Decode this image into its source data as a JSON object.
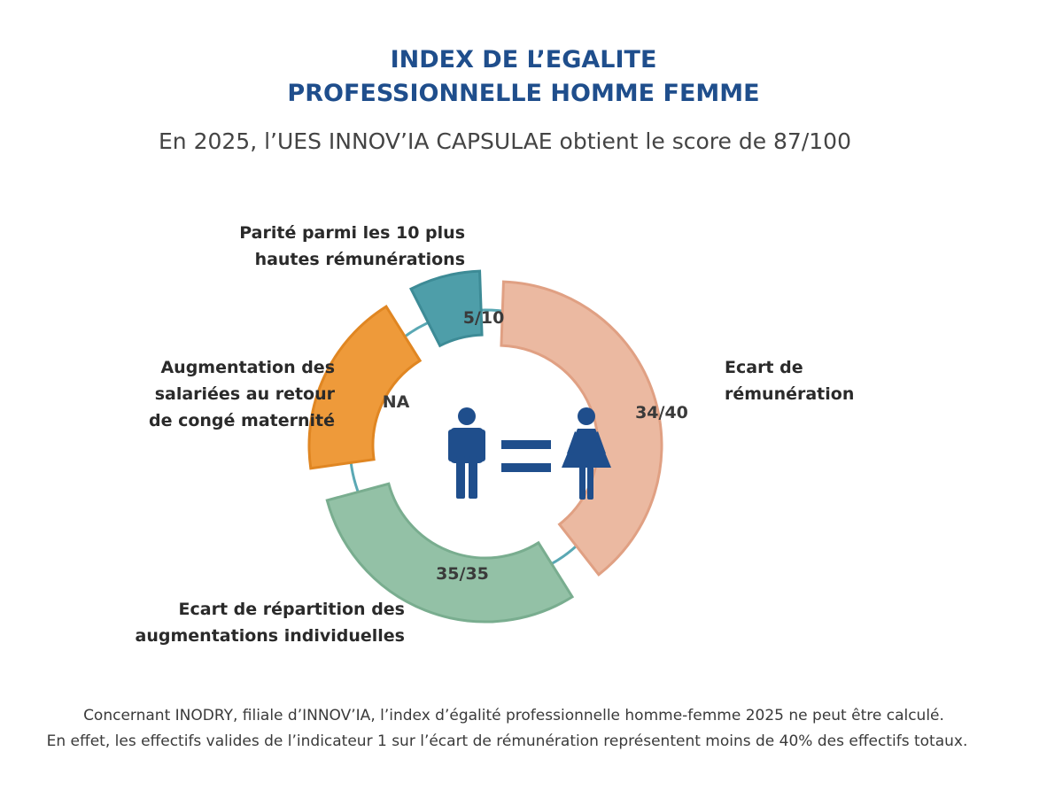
{
  "header": {
    "title_line1": "INDEX DE L’EGALITE",
    "title_line2": "PROFESSIONNELLE HOMME FEMME",
    "subtitle": "En 2025, l’UES INNOV’IA CAPSULAE obtient le score de 87/100"
  },
  "chart_data": {
    "type": "pie",
    "donut": true,
    "series": [
      {
        "name": "Ecart de rémunération",
        "label_lines": [
          "Ecart de",
          "rémunération"
        ],
        "score_label": "34/40",
        "value": 34,
        "max": 40,
        "color": "#ebb9a1",
        "stroke": "#e0a083"
      },
      {
        "name": "Ecart de répartition des augmentations individuelles",
        "label_lines": [
          "Ecart de répartition des",
          "augmentations individuelles"
        ],
        "score_label": "35/35",
        "value": 35,
        "max": 35,
        "color": "#93c1a6",
        "stroke": "#79ad8f"
      },
      {
        "name": "Augmentation des salariées au retour de congé maternité",
        "label_lines": [
          "Augmentation des",
          "salariées au retour",
          "de congé maternité"
        ],
        "score_label": "NA",
        "value": null,
        "max": 15,
        "color": "#ee9a3a",
        "stroke": "#e08622"
      },
      {
        "name": "Parité parmi les 10 plus hautes rémunérations",
        "label_lines": [
          "Parité parmi les 10 plus",
          "hautes rémunérations"
        ],
        "score_label": "5/10",
        "value": 5,
        "max": 10,
        "color": "#4e9ea9",
        "stroke": "#3d8b96"
      }
    ],
    "center_icon": "man-equals-woman-icon",
    "icon_color": "#1f4e8c",
    "ring_line_color": "#5aa8b4"
  },
  "footnote": {
    "line1": "Concernant INODRY, filiale d’INNOV’IA, l’index d’égalité professionnelle homme-femme 2025 ne peut être calculé.",
    "line2": "En effet, les effectifs valides de l’indicateur 1 sur l’écart de rémunération représentent moins de 40% des effectifs totaux."
  }
}
